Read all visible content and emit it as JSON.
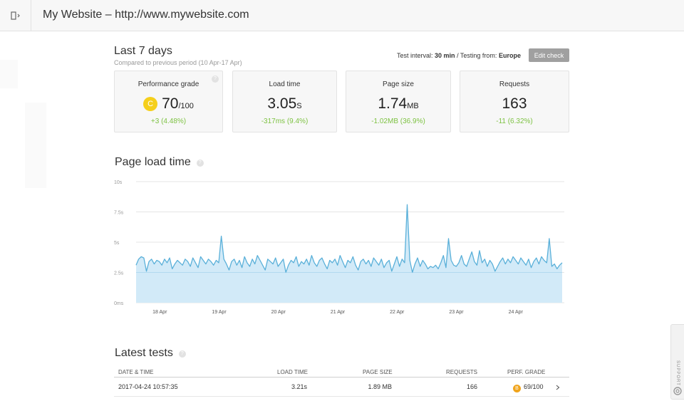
{
  "header": {
    "title": "My Website – http://www.mywebsite.com"
  },
  "period": {
    "title": "Last 7 days",
    "subtitle": "Compared to previous period (10 Apr-17 Apr)",
    "interval_label": "Test interval:",
    "interval_value": "30 min",
    "separator": " / ",
    "location_label": "Testing from:",
    "location_value": "Europe",
    "edit_label": "Edit check"
  },
  "cards": [
    {
      "label": "Performance grade",
      "grade": "C",
      "value": "70",
      "unit": "/100",
      "delta": "+3 (4.48%)",
      "help": "?"
    },
    {
      "label": "Load time",
      "value": "3.05",
      "unit": "S",
      "delta": "-317ms (9.4%)"
    },
    {
      "label": "Page size",
      "value": "1.74",
      "unit": "MB",
      "delta": "-1.02MB (36.9%)"
    },
    {
      "label": "Requests",
      "value": "163",
      "unit": "",
      "delta": "-11 (6.32%)"
    }
  ],
  "load_section": {
    "title": "Page load time",
    "help": "?"
  },
  "chart_data": {
    "type": "area",
    "x_ticks": [
      "18 Apr",
      "19 Apr",
      "20 Apr",
      "21 Apr",
      "22 Apr",
      "23 Apr",
      "24 Apr"
    ],
    "y_ticks": [
      "0ms",
      "2.5s",
      "5s",
      "7.5s",
      "10s"
    ],
    "ylim": [
      0,
      10
    ],
    "xlim": [
      17.6,
      24.82
    ],
    "average": 2.5,
    "colors": {
      "line": "#5ab0d9",
      "fill": "#d2eaf8",
      "grid": "#e5e5e5"
    },
    "series": [
      {
        "values": [
          3.1,
          3.6,
          3.8,
          3.7,
          2.6,
          3.4,
          3.6,
          3.2,
          3.5,
          3.4,
          3.1,
          3.6,
          3.3,
          3.7,
          2.8,
          3.2,
          3.5,
          3.3,
          3.1,
          3.6,
          3.4,
          3.0,
          3.7,
          3.3,
          2.9,
          3.8,
          3.5,
          3.2,
          3.6,
          3.4,
          3.1,
          3.5,
          3.3,
          5.5,
          3.6,
          3.2,
          2.7,
          3.4,
          3.6,
          3.1,
          3.5,
          2.9,
          3.8,
          3.3,
          3.0,
          3.6,
          3.2,
          3.9,
          3.5,
          3.1,
          2.7,
          3.6,
          3.4,
          3.2,
          3.7,
          3.0,
          3.3,
          3.6,
          2.5,
          3.1,
          3.5,
          3.3,
          3.8,
          3.0,
          3.4,
          3.2,
          3.6,
          3.1,
          3.9,
          3.3,
          3.0,
          3.5,
          3.7,
          3.2,
          2.8,
          3.5,
          3.3,
          3.6,
          3.1,
          3.9,
          3.4,
          2.9,
          3.5,
          3.3,
          3.8,
          3.1,
          2.7,
          3.4,
          3.6,
          3.2,
          3.5,
          3.0,
          3.7,
          3.4,
          3.1,
          3.6,
          2.9,
          3.3,
          3.5,
          2.6,
          3.2,
          3.8,
          3.0,
          3.6,
          3.3,
          8.1,
          3.5,
          2.5,
          3.2,
          3.7,
          3.0,
          3.5,
          3.2,
          2.8,
          3.0,
          2.9,
          3.1,
          2.8,
          3.3,
          3.9,
          2.9,
          5.3,
          3.5,
          3.1,
          3.0,
          3.3,
          3.9,
          3.2,
          3.0,
          3.6,
          4.2,
          3.4,
          3.1,
          4.3,
          3.3,
          3.6,
          3.0,
          3.5,
          3.2,
          2.6,
          3.0,
          3.4,
          3.7,
          3.2,
          3.6,
          3.3,
          3.8,
          3.5,
          3.2,
          3.7,
          3.4,
          3.1,
          3.6,
          2.9,
          3.4,
          3.7,
          3.2,
          3.8,
          3.5,
          3.3,
          5.3,
          3.0,
          3.2,
          2.8,
          3.1,
          3.3
        ]
      }
    ]
  },
  "tests_section": {
    "title": "Latest tests",
    "help": "?"
  },
  "table": {
    "columns": [
      "DATE & TIME",
      "LOAD TIME",
      "PAGE SIZE",
      "REQUESTS",
      "PERF. GRADE"
    ],
    "rows": [
      {
        "date": "2017-04-24 10:57:35",
        "load": "3.21s",
        "size": "1.89 MB",
        "requests": "166",
        "grade_letter": "B",
        "grade": "69/100",
        "grade_color": "#f0a41c"
      }
    ]
  },
  "support": {
    "label": "SUPPORT"
  }
}
